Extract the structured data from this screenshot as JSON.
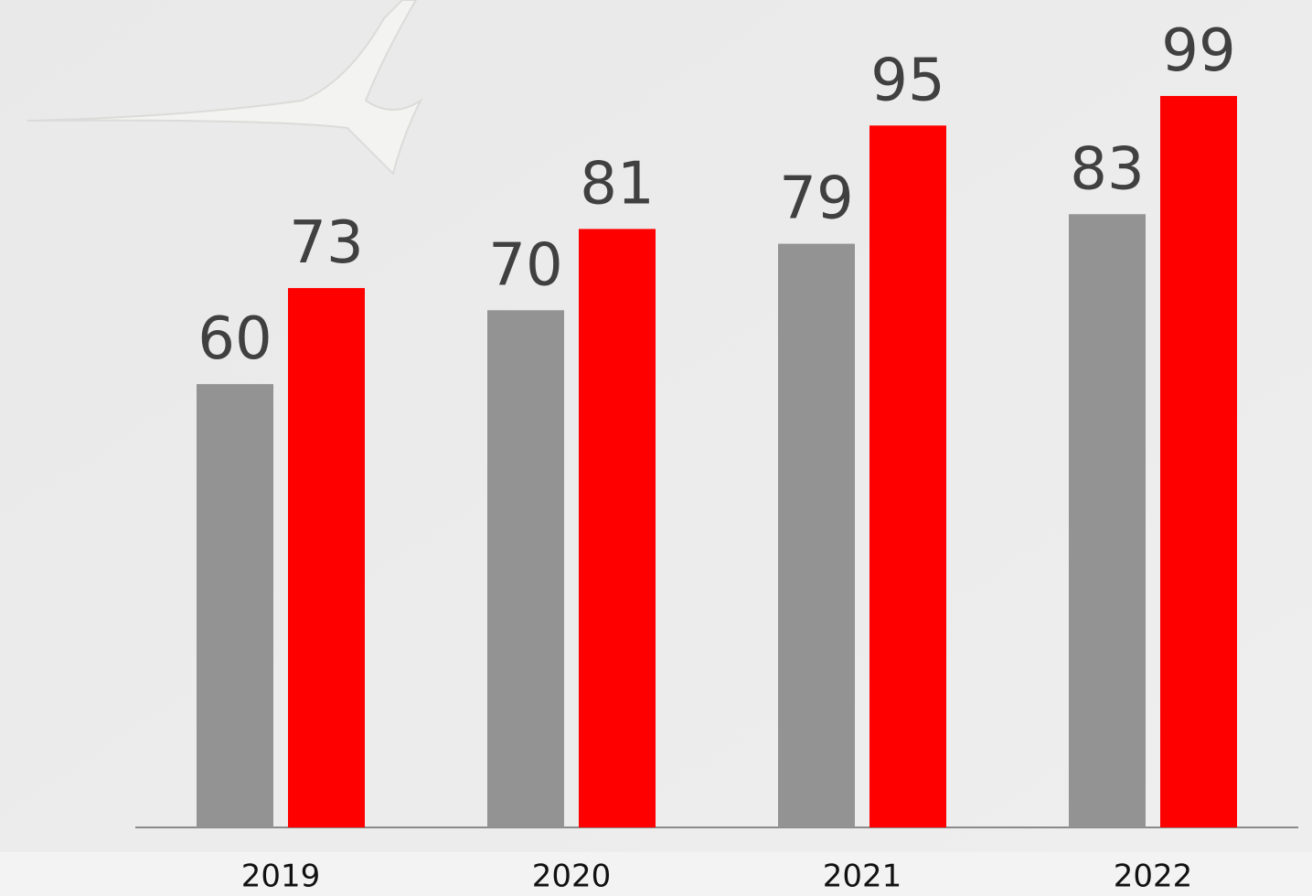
{
  "chart_data": {
    "type": "bar",
    "categories": [
      "2019",
      "2020",
      "2021",
      "2022"
    ],
    "series": [
      {
        "color": "#939393",
        "values": [
          60,
          70,
          79,
          83
        ]
      },
      {
        "color": "#ff0000",
        "values": [
          73,
          81,
          95,
          99
        ]
      }
    ],
    "ylim": [
      0,
      111
    ]
  }
}
